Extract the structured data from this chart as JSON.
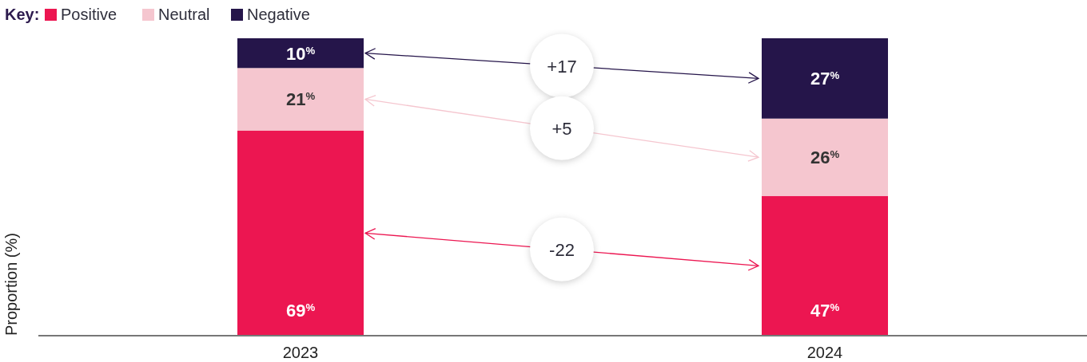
{
  "chart_data": {
    "type": "bar",
    "stacked": true,
    "ylabel": "Proportion (%)",
    "legend_title": "Key:",
    "legend": "top left",
    "categories": [
      "2023",
      "2024"
    ],
    "ylim": [
      0,
      100
    ],
    "tick_labels": "x",
    "series": [
      {
        "name": "Positive",
        "color": "#ec1651",
        "values": [
          69,
          47
        ],
        "value_labels": [
          "69$^{%}$",
          "47$^{%}$"
        ]
      },
      {
        "name": "Neutral",
        "color": "#f5c6cf",
        "values": [
          21,
          26
        ],
        "value_labels": [
          "21$^{%}$",
          "26$^{%}$"
        ]
      },
      {
        "name": "Negative",
        "color": "#25154a",
        "values": [
          10,
          27
        ],
        "value_labels": [
          "10$^{%}$",
          "27$^{%}$"
        ]
      }
    ],
    "annotations": [
      "+17",
      "+5",
      "-22"
    ]
  }
}
